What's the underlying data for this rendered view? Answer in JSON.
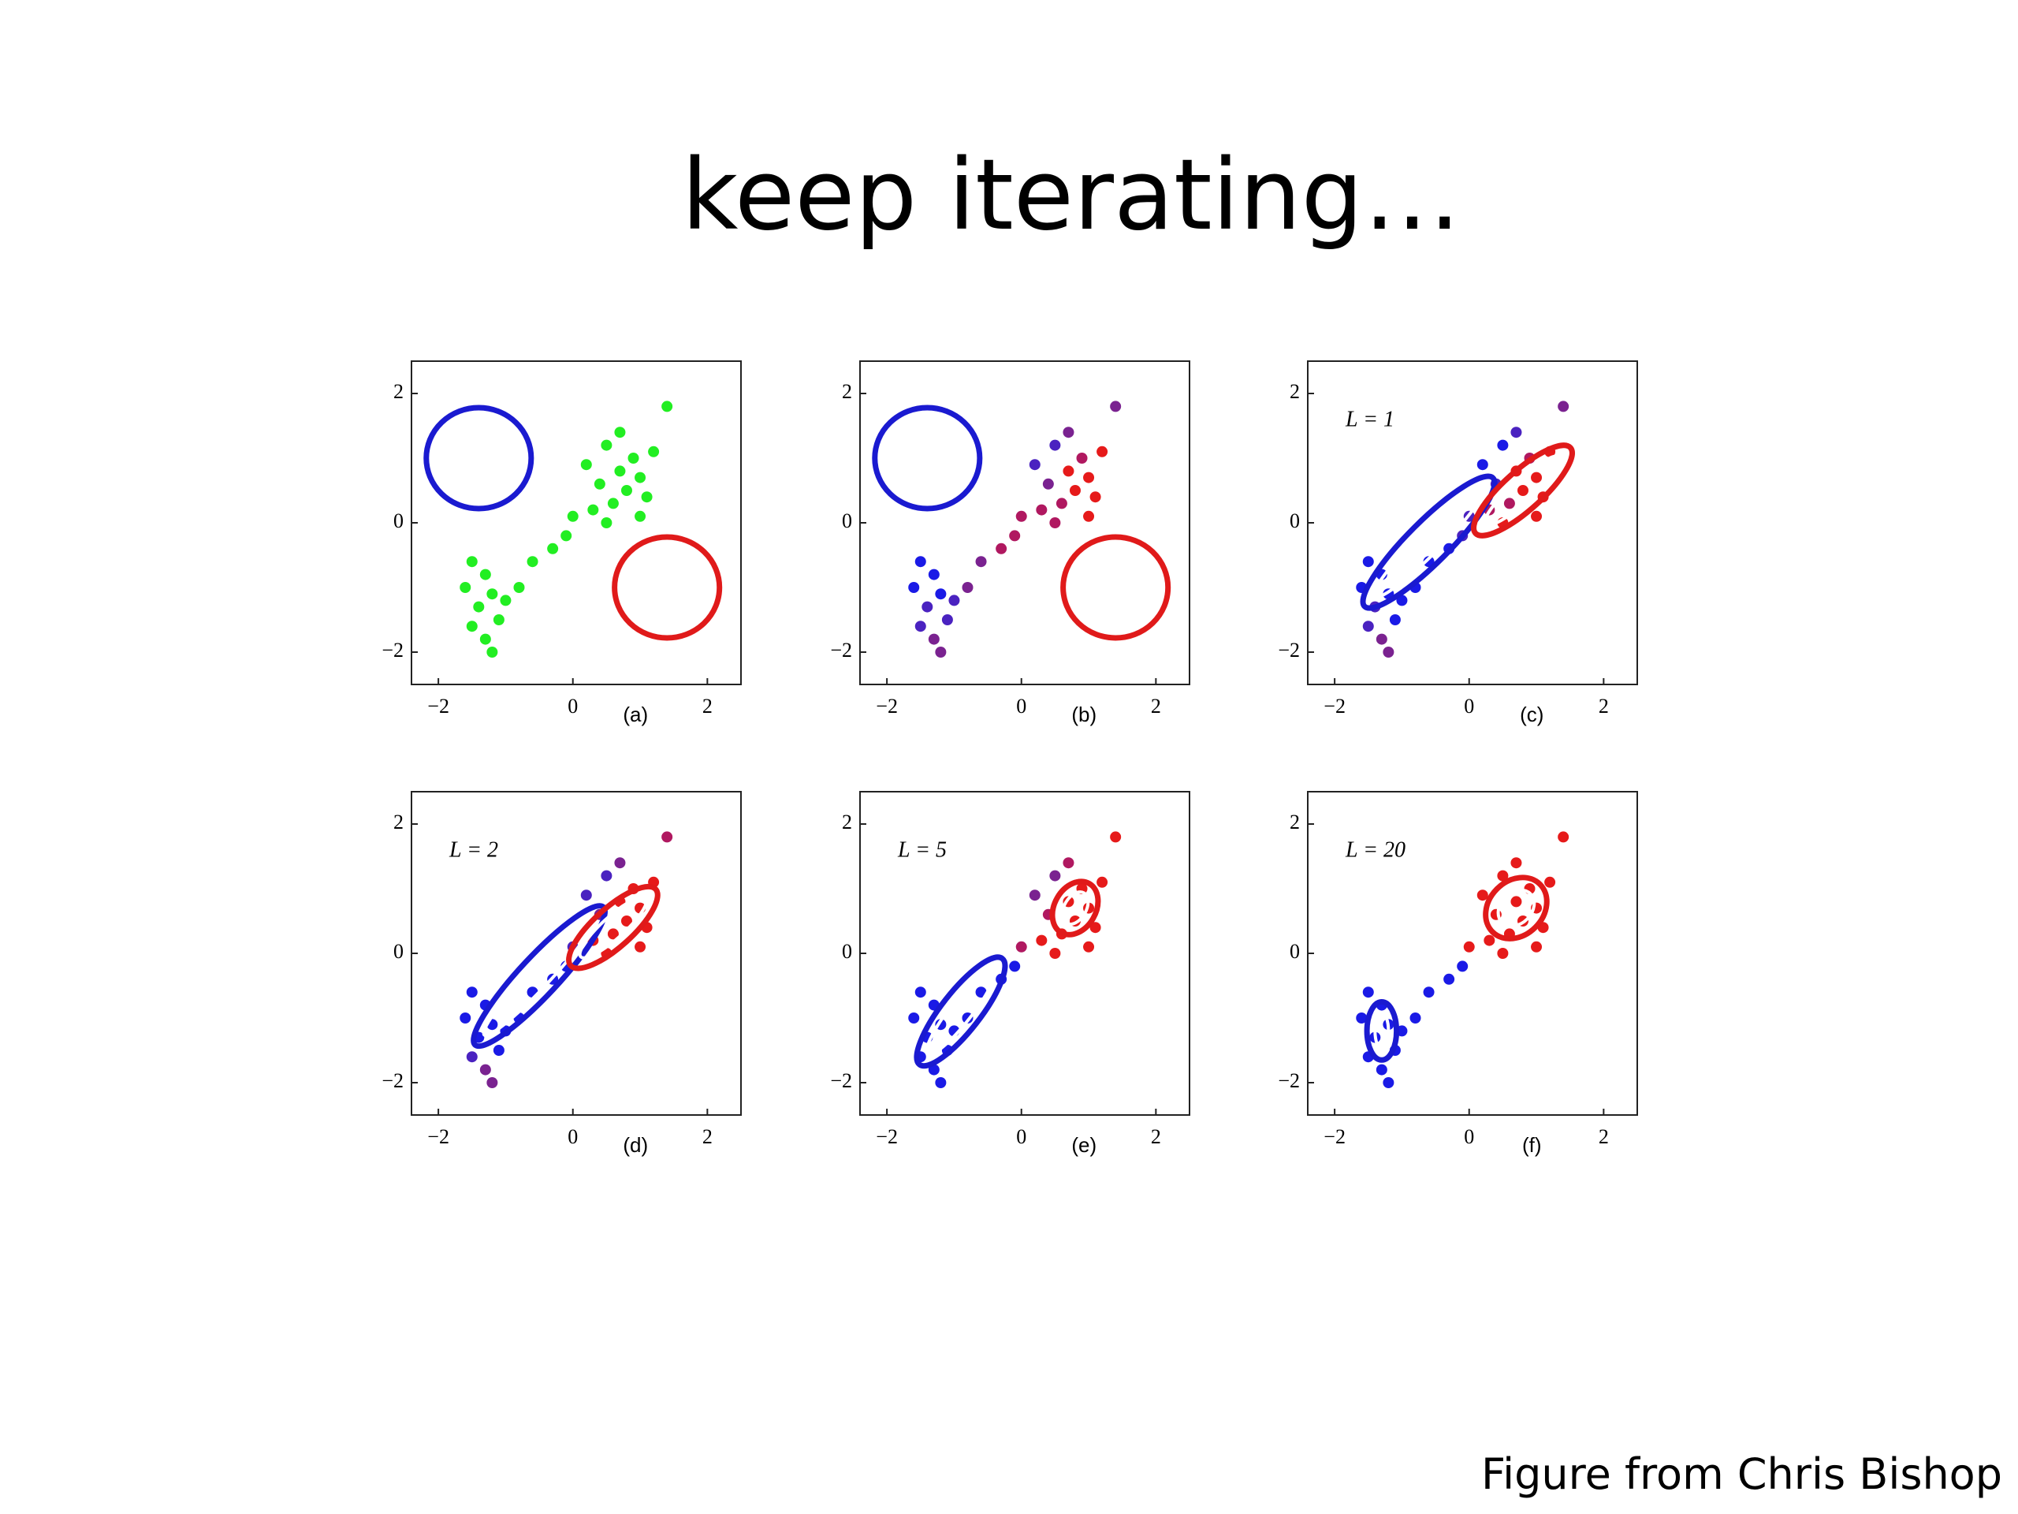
{
  "title": "keep iterating…",
  "credit": "Figure from Chris Bishop",
  "chart_data": [
    {
      "type": "scatter",
      "label": "(a)",
      "xlim": [
        -2.4,
        2.5
      ],
      "ylim": [
        -2.5,
        2.5
      ],
      "xticks": [
        {
          "value": -2,
          "label": "−2"
        },
        0,
        2
      ],
      "yticks": [
        {
          "value": -2,
          "label": "−2"
        },
        0,
        2
      ],
      "x": [
        -1.5,
        -1.3,
        -1.6,
        -1.2,
        -1.4,
        -1.1,
        -1.5,
        -1.3,
        -1.2,
        -1.0,
        -0.8,
        -0.6,
        -0.3,
        -0.1,
        0.0,
        0.2,
        0.4,
        0.5,
        0.6,
        0.7,
        0.8,
        0.9,
        1.0,
        1.1,
        0.3,
        1.2,
        0.7,
        1.4,
        0.5,
        1.0
      ],
      "y": [
        -0.6,
        -0.8,
        -1.0,
        -1.1,
        -1.3,
        -1.5,
        -1.6,
        -1.8,
        -2.0,
        -1.2,
        -1.0,
        -0.6,
        -0.4,
        -0.2,
        0.1,
        0.9,
        0.6,
        1.2,
        0.3,
        0.8,
        0.5,
        1.0,
        0.7,
        0.4,
        0.2,
        1.1,
        1.4,
        1.8,
        0.0,
        0.1
      ],
      "color": "#22ee22",
      "ellipses": [
        {
          "cx": -1.4,
          "cy": 1.0,
          "rx": 0.78,
          "ry": 0.78,
          "angle": 0,
          "color": "#1a1ad0"
        },
        {
          "cx": 1.4,
          "cy": -1.0,
          "rx": 0.78,
          "ry": 0.78,
          "angle": 0,
          "color": "#e01a1a"
        }
      ]
    },
    {
      "type": "scatter",
      "label": "(b)",
      "xlim": [
        -2.4,
        2.5
      ],
      "ylim": [
        -2.5,
        2.5
      ],
      "xticks": [
        {
          "value": -2,
          "label": "−2"
        },
        0,
        2
      ],
      "yticks": [
        {
          "value": -2,
          "label": "−2"
        },
        0,
        2
      ],
      "x": [
        -1.5,
        -1.3,
        -1.6,
        -1.2,
        -1.4,
        -1.1,
        -1.5,
        -1.3,
        -1.2,
        -1.0,
        -0.8,
        -0.6,
        -0.3,
        -0.1,
        0.0,
        0.2,
        0.4,
        0.5,
        0.6,
        0.7,
        0.8,
        0.9,
        1.0,
        1.1,
        0.3,
        1.2,
        0.7,
        1.4,
        0.5,
        1.0
      ],
      "y": [
        -0.6,
        -0.8,
        -1.0,
        -1.1,
        -1.3,
        -1.5,
        -1.6,
        -1.8,
        -2.0,
        -1.2,
        -1.0,
        -0.6,
        -0.4,
        -0.2,
        0.1,
        0.9,
        0.6,
        1.2,
        0.3,
        0.8,
        0.5,
        1.0,
        0.7,
        0.4,
        0.2,
        1.1,
        1.4,
        1.8,
        0.0,
        0.1
      ],
      "colors": [
        "#1a1ae6",
        "#1a1ae6",
        "#1a1ae6",
        "#1a1ae6",
        "#4a22c0",
        "#4a22c0",
        "#4a22c0",
        "#7a2290",
        "#7a2290",
        "#4a22c0",
        "#7a2290",
        "#7a2290",
        "#b01860",
        "#b01860",
        "#b01860",
        "#4a22c0",
        "#7a2290",
        "#4a22c0",
        "#b01860",
        "#e61a1a",
        "#e61a1a",
        "#b01860",
        "#e61a1a",
        "#e61a1a",
        "#b01860",
        "#e61a1a",
        "#7a2290",
        "#7a2290",
        "#b01860",
        "#e61a1a"
      ],
      "ellipses": [
        {
          "cx": -1.4,
          "cy": 1.0,
          "rx": 0.78,
          "ry": 0.78,
          "angle": 0,
          "color": "#1a1ad0"
        },
        {
          "cx": 1.4,
          "cy": -1.0,
          "rx": 0.78,
          "ry": 0.78,
          "angle": 0,
          "color": "#e01a1a"
        }
      ]
    },
    {
      "type": "scatter",
      "label": "(c)",
      "annotation": "L = 1",
      "xlim": [
        -2.4,
        2.5
      ],
      "ylim": [
        -2.5,
        2.5
      ],
      "xticks": [
        {
          "value": -2,
          "label": "−2"
        },
        0,
        2
      ],
      "yticks": [
        {
          "value": -2,
          "label": "−2"
        },
        0,
        2
      ],
      "x": [
        -1.5,
        -1.3,
        -1.6,
        -1.2,
        -1.4,
        -1.1,
        -1.5,
        -1.3,
        -1.2,
        -1.0,
        -0.8,
        -0.6,
        -0.3,
        -0.1,
        0.0,
        0.2,
        0.4,
        0.5,
        0.6,
        0.7,
        0.8,
        0.9,
        1.0,
        1.1,
        0.3,
        1.2,
        0.7,
        1.4,
        0.5,
        1.0
      ],
      "y": [
        -0.6,
        -0.8,
        -1.0,
        -1.1,
        -1.3,
        -1.5,
        -1.6,
        -1.8,
        -2.0,
        -1.2,
        -1.0,
        -0.6,
        -0.4,
        -0.2,
        0.1,
        0.9,
        0.6,
        1.2,
        0.3,
        0.8,
        0.5,
        1.0,
        0.7,
        0.4,
        0.2,
        1.1,
        1.4,
        1.8,
        0.0,
        0.1
      ],
      "colors": [
        "#1a1ae6",
        "#1a1ae6",
        "#1a1ae6",
        "#1a1ae6",
        "#4a22c0",
        "#1a1ae6",
        "#4a22c0",
        "#7a2290",
        "#7a2290",
        "#1a1ae6",
        "#1a1ae6",
        "#1a1ae6",
        "#1a1ae6",
        "#4a22c0",
        "#4a22c0",
        "#1a1ae6",
        "#4a22c0",
        "#1a1ae6",
        "#b01860",
        "#e61a1a",
        "#e61a1a",
        "#b01860",
        "#e61a1a",
        "#e61a1a",
        "#b01860",
        "#e61a1a",
        "#4a22c0",
        "#7a2290",
        "#e61a1a",
        "#e61a1a"
      ],
      "ellipses": [
        {
          "cx": -0.6,
          "cy": -0.3,
          "rx": 1.35,
          "ry": 0.32,
          "angle": 45,
          "color": "#1a1ad0"
        },
        {
          "cx": -0.6,
          "cy": -0.3,
          "rx": 1.15,
          "ry": 0.18,
          "angle": 45,
          "color": "#ffffff"
        },
        {
          "cx": 0.8,
          "cy": 0.5,
          "rx": 0.95,
          "ry": 0.3,
          "angle": 42,
          "color": "#e01a1a"
        },
        {
          "cx": 0.8,
          "cy": 0.5,
          "rx": 0.75,
          "ry": 0.17,
          "angle": 42,
          "color": "#ffffff"
        }
      ]
    },
    {
      "type": "scatter",
      "label": "(d)",
      "annotation": "L = 2",
      "xlim": [
        -2.4,
        2.5
      ],
      "ylim": [
        -2.5,
        2.5
      ],
      "xticks": [
        {
          "value": -2,
          "label": "−2"
        },
        0,
        2
      ],
      "yticks": [
        {
          "value": -2,
          "label": "−2"
        },
        0,
        2
      ],
      "x": [
        -1.5,
        -1.3,
        -1.6,
        -1.2,
        -1.4,
        -1.1,
        -1.5,
        -1.3,
        -1.2,
        -1.0,
        -0.8,
        -0.6,
        -0.3,
        -0.1,
        0.0,
        0.2,
        0.4,
        0.5,
        0.6,
        0.7,
        0.8,
        0.9,
        1.0,
        1.1,
        0.3,
        1.2,
        0.7,
        1.4,
        0.5,
        1.0
      ],
      "y": [
        -0.6,
        -0.8,
        -1.0,
        -1.1,
        -1.3,
        -1.5,
        -1.6,
        -1.8,
        -2.0,
        -1.2,
        -1.0,
        -0.6,
        -0.4,
        -0.2,
        0.1,
        0.9,
        0.6,
        1.2,
        0.3,
        0.8,
        0.5,
        1.0,
        0.7,
        0.4,
        0.2,
        1.1,
        1.4,
        1.8,
        0.0,
        0.1
      ],
      "colors": [
        "#1a1ae6",
        "#1a1ae6",
        "#1a1ae6",
        "#1a1ae6",
        "#1a1ae6",
        "#1a1ae6",
        "#4a22c0",
        "#7a2290",
        "#7a2290",
        "#1a1ae6",
        "#1a1ae6",
        "#1a1ae6",
        "#1a1ae6",
        "#1a1ae6",
        "#4a22c0",
        "#4a22c0",
        "#7a2290",
        "#4a22c0",
        "#e61a1a",
        "#e61a1a",
        "#e61a1a",
        "#e61a1a",
        "#e61a1a",
        "#e61a1a",
        "#e61a1a",
        "#e61a1a",
        "#7a2290",
        "#b01860",
        "#e61a1a",
        "#e61a1a"
      ],
      "ellipses": [
        {
          "cx": -0.5,
          "cy": -0.35,
          "rx": 1.4,
          "ry": 0.3,
          "angle": 47,
          "color": "#1a1ad0"
        },
        {
          "cx": -0.5,
          "cy": -0.35,
          "rx": 1.2,
          "ry": 0.17,
          "angle": 47,
          "color": "#ffffff"
        },
        {
          "cx": 0.6,
          "cy": 0.4,
          "rx": 0.85,
          "ry": 0.3,
          "angle": 42,
          "color": "#e01a1a"
        },
        {
          "cx": 0.6,
          "cy": 0.4,
          "rx": 0.65,
          "ry": 0.17,
          "angle": 42,
          "color": "#ffffff"
        }
      ]
    },
    {
      "type": "scatter",
      "label": "(e)",
      "annotation": "L = 5",
      "xlim": [
        -2.4,
        2.5
      ],
      "ylim": [
        -2.5,
        2.5
      ],
      "xticks": [
        {
          "value": -2,
          "label": "−2"
        },
        0,
        2
      ],
      "yticks": [
        {
          "value": -2,
          "label": "−2"
        },
        0,
        2
      ],
      "x": [
        -1.5,
        -1.3,
        -1.6,
        -1.2,
        -1.4,
        -1.1,
        -1.5,
        -1.3,
        -1.2,
        -1.0,
        -0.8,
        -0.6,
        -0.3,
        -0.1,
        0.0,
        0.2,
        0.4,
        0.5,
        0.6,
        0.7,
        0.8,
        0.9,
        1.0,
        1.1,
        0.3,
        1.2,
        0.7,
        1.4,
        0.5,
        1.0
      ],
      "y": [
        -0.6,
        -0.8,
        -1.0,
        -1.1,
        -1.3,
        -1.5,
        -1.6,
        -1.8,
        -2.0,
        -1.2,
        -1.0,
        -0.6,
        -0.4,
        -0.2,
        0.1,
        0.9,
        0.6,
        1.2,
        0.3,
        0.8,
        0.5,
        1.0,
        0.7,
        0.4,
        0.2,
        1.1,
        1.4,
        1.8,
        0.0,
        0.1
      ],
      "colors": [
        "#1a1ae6",
        "#1a1ae6",
        "#1a1ae6",
        "#1a1ae6",
        "#1a1ae6",
        "#1a1ae6",
        "#1a1ae6",
        "#1a1ae6",
        "#1a1ae6",
        "#1a1ae6",
        "#1a1ae6",
        "#1a1ae6",
        "#1a1ae6",
        "#1a1ae6",
        "#b01860",
        "#7a2290",
        "#b01860",
        "#7a2290",
        "#e61a1a",
        "#e61a1a",
        "#e61a1a",
        "#e61a1a",
        "#e61a1a",
        "#e61a1a",
        "#e61a1a",
        "#e61a1a",
        "#b01860",
        "#e61a1a",
        "#e61a1a",
        "#e61a1a"
      ],
      "ellipses": [
        {
          "cx": -0.9,
          "cy": -0.9,
          "rx": 1.0,
          "ry": 0.3,
          "angle": 52,
          "color": "#1a1ad0"
        },
        {
          "cx": -0.9,
          "cy": -0.9,
          "rx": 0.8,
          "ry": 0.17,
          "angle": 52,
          "color": "#ffffff"
        },
        {
          "cx": 0.8,
          "cy": 0.7,
          "rx": 0.42,
          "ry": 0.32,
          "angle": 60,
          "color": "#e01a1a"
        },
        {
          "cx": 0.8,
          "cy": 0.7,
          "rx": 0.26,
          "ry": 0.17,
          "angle": 60,
          "color": "#ffffff"
        }
      ]
    },
    {
      "type": "scatter",
      "label": "(f)",
      "annotation": "L = 20",
      "xlim": [
        -2.4,
        2.5
      ],
      "ylim": [
        -2.5,
        2.5
      ],
      "xticks": [
        {
          "value": -2,
          "label": "−2"
        },
        0,
        2
      ],
      "yticks": [
        {
          "value": -2,
          "label": "−2"
        },
        0,
        2
      ],
      "x": [
        -1.5,
        -1.3,
        -1.6,
        -1.2,
        -1.4,
        -1.1,
        -1.5,
        -1.3,
        -1.2,
        -1.0,
        -0.8,
        -0.6,
        -0.3,
        -0.1,
        0.0,
        0.2,
        0.4,
        0.5,
        0.6,
        0.7,
        0.8,
        0.9,
        1.0,
        1.1,
        0.3,
        1.2,
        0.7,
        1.4,
        0.5,
        1.0
      ],
      "y": [
        -0.6,
        -0.8,
        -1.0,
        -1.1,
        -1.3,
        -1.5,
        -1.6,
        -1.8,
        -2.0,
        -1.2,
        -1.0,
        -0.6,
        -0.4,
        -0.2,
        0.1,
        0.9,
        0.6,
        1.2,
        0.3,
        0.8,
        0.5,
        1.0,
        0.7,
        0.4,
        0.2,
        1.1,
        1.4,
        1.8,
        0.0,
        0.1
      ],
      "colors": [
        "#1a1ae6",
        "#1a1ae6",
        "#1a1ae6",
        "#1a1ae6",
        "#1a1ae6",
        "#1a1ae6",
        "#1a1ae6",
        "#1a1ae6",
        "#1a1ae6",
        "#1a1ae6",
        "#1a1ae6",
        "#1a1ae6",
        "#1a1ae6",
        "#1a1ae6",
        "#e61a1a",
        "#e61a1a",
        "#e61a1a",
        "#e61a1a",
        "#e61a1a",
        "#e61a1a",
        "#e61a1a",
        "#e61a1a",
        "#e61a1a",
        "#e61a1a",
        "#e61a1a",
        "#e61a1a",
        "#e61a1a",
        "#e61a1a",
        "#e61a1a",
        "#e61a1a"
      ],
      "ellipses": [
        {
          "cx": -1.3,
          "cy": -1.2,
          "rx": 0.22,
          "ry": 0.45,
          "angle": 0,
          "color": "#1a1ad0"
        },
        {
          "cx": -1.3,
          "cy": -1.2,
          "rx": 0.1,
          "ry": 0.28,
          "angle": 0,
          "color": "#ffffff"
        },
        {
          "cx": 0.7,
          "cy": 0.7,
          "rx": 0.5,
          "ry": 0.42,
          "angle": 45,
          "color": "#e01a1a"
        },
        {
          "cx": 0.7,
          "cy": 0.7,
          "rx": 0.3,
          "ry": 0.24,
          "angle": 45,
          "color": "#ffffff"
        }
      ]
    }
  ]
}
